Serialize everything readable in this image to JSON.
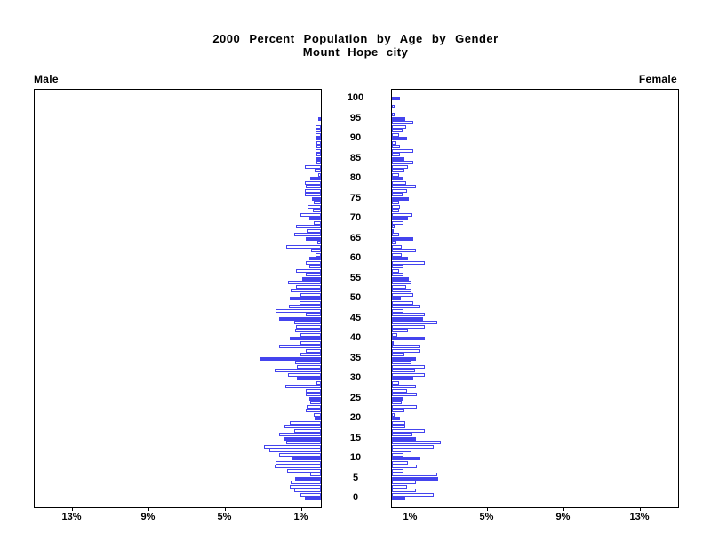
{
  "title": {
    "line1": "2000 Percent Population by Age by Gender",
    "line2": "Mount Hope city"
  },
  "panel_labels": {
    "left": "Male",
    "right": "Female"
  },
  "axis": {
    "male_tick_labels": [
      "13%",
      "9%",
      "5%",
      "1%"
    ],
    "male_tick_values": [
      13,
      9,
      5,
      1
    ],
    "female_tick_labels": [
      "1%",
      "5%",
      "9%",
      "13%"
    ],
    "female_tick_values": [
      1,
      5,
      9,
      13
    ],
    "age_tick_labels": [
      "100",
      "95",
      "90",
      "85",
      "80",
      "75",
      "70",
      "65",
      "60",
      "55",
      "50",
      "45",
      "40",
      "35",
      "30",
      "25",
      "20",
      "15",
      "10",
      "5",
      "0"
    ],
    "age_tick_values": [
      100,
      95,
      90,
      85,
      80,
      75,
      70,
      65,
      60,
      55,
      50,
      45,
      40,
      35,
      30,
      25,
      20,
      15,
      10,
      5,
      0
    ]
  },
  "chart_data": {
    "type": "bar",
    "subtype": "population-pyramid",
    "title": "2000 Percent Population by Age by Gender",
    "subtitle": "Mount Hope city",
    "x_unit": "percent",
    "xlim": [
      0,
      15
    ],
    "age_min": 0,
    "age_max": 100,
    "age_step": 1,
    "bar_fill_rule": "ages divisible by 5 are solid blue; other ages are white with blue outline",
    "legend": "none",
    "grid": false,
    "colors": {
      "bar_accent": "#4444EE",
      "bar_outline_fill": "#FFFFFF",
      "axis": "#000000",
      "text": "#000000",
      "background": "#FFFFFF"
    },
    "series": [
      {
        "name": "Male",
        "side": "left",
        "values_percent_by_age": [
          0.85,
          1.08,
          1.4,
          1.63,
          1.58,
          1.36,
          0.55,
          1.78,
          2.44,
          2.36,
          1.47,
          2.2,
          2.71,
          2.98,
          1.83,
          1.89,
          2.17,
          1.4,
          1.89,
          1.63,
          0.31,
          0.39,
          0.81,
          0.74,
          0.54,
          0.6,
          0.8,
          0.8,
          1.85,
          0.25,
          1.27,
          1.7,
          2.4,
          1.26,
          1.35,
          3.16,
          1.08,
          0.81,
          2.2,
          1.08,
          1.63,
          1.08,
          1.36,
          1.32,
          1.4,
          2.2,
          0.81,
          2.36,
          1.67,
          1.1,
          1.63,
          1.08,
          1.58,
          1.32,
          1.7,
          0.96,
          0.81,
          1.32,
          0.62,
          0.81,
          0.62,
          0.28,
          0.5,
          1.83,
          0.19,
          0.78,
          1.4,
          0.75,
          1.32,
          0.35,
          0.6,
          1.08,
          0.42,
          0.7,
          0.35,
          0.47,
          0.85,
          0.85,
          0.8,
          0.84,
          0.54,
          0.15,
          0.34,
          0.84,
          0.23,
          0.28,
          0.23,
          0.28,
          0.23,
          0.23,
          0.28,
          0.28,
          0.28,
          0.28,
          0.0,
          0.15,
          0.0,
          0.0,
          0.0,
          0.0,
          0.0
        ]
      },
      {
        "name": "Female",
        "side": "right",
        "values_percent_by_age": [
          0.7,
          2.17,
          1.24,
          0.78,
          1.24,
          2.4,
          2.37,
          0.62,
          1.29,
          0.85,
          1.5,
          0.62,
          1.0,
          2.17,
          2.56,
          1.27,
          1.08,
          1.7,
          0.7,
          0.7,
          0.42,
          0.16,
          0.67,
          1.29,
          0.51,
          0.62,
          1.29,
          0.78,
          1.24,
          0.39,
          1.13,
          1.7,
          1.2,
          1.7,
          1.0,
          1.27,
          0.67,
          1.47,
          1.47,
          0.1,
          1.7,
          0.3,
          0.85,
          1.73,
          2.37,
          1.62,
          1.7,
          0.62,
          1.47,
          1.13,
          0.47,
          1.13,
          1.0,
          0.75,
          1.0,
          0.9,
          0.62,
          0.36,
          0.62,
          1.7,
          0.85,
          0.51,
          1.27,
          0.51,
          0.23,
          1.13,
          0.39,
          0.1,
          0.16,
          0.62,
          0.85,
          1.08,
          0.36,
          0.42,
          0.39,
          0.9,
          0.54,
          0.78,
          1.27,
          0.74,
          0.55,
          0.35,
          0.65,
          0.85,
          1.1,
          0.65,
          0.4,
          1.1,
          0.4,
          0.25,
          0.79,
          0.36,
          0.56,
          0.74,
          1.1,
          0.71,
          0.15,
          0.0,
          0.15,
          0.0,
          0.42
        ]
      }
    ]
  }
}
